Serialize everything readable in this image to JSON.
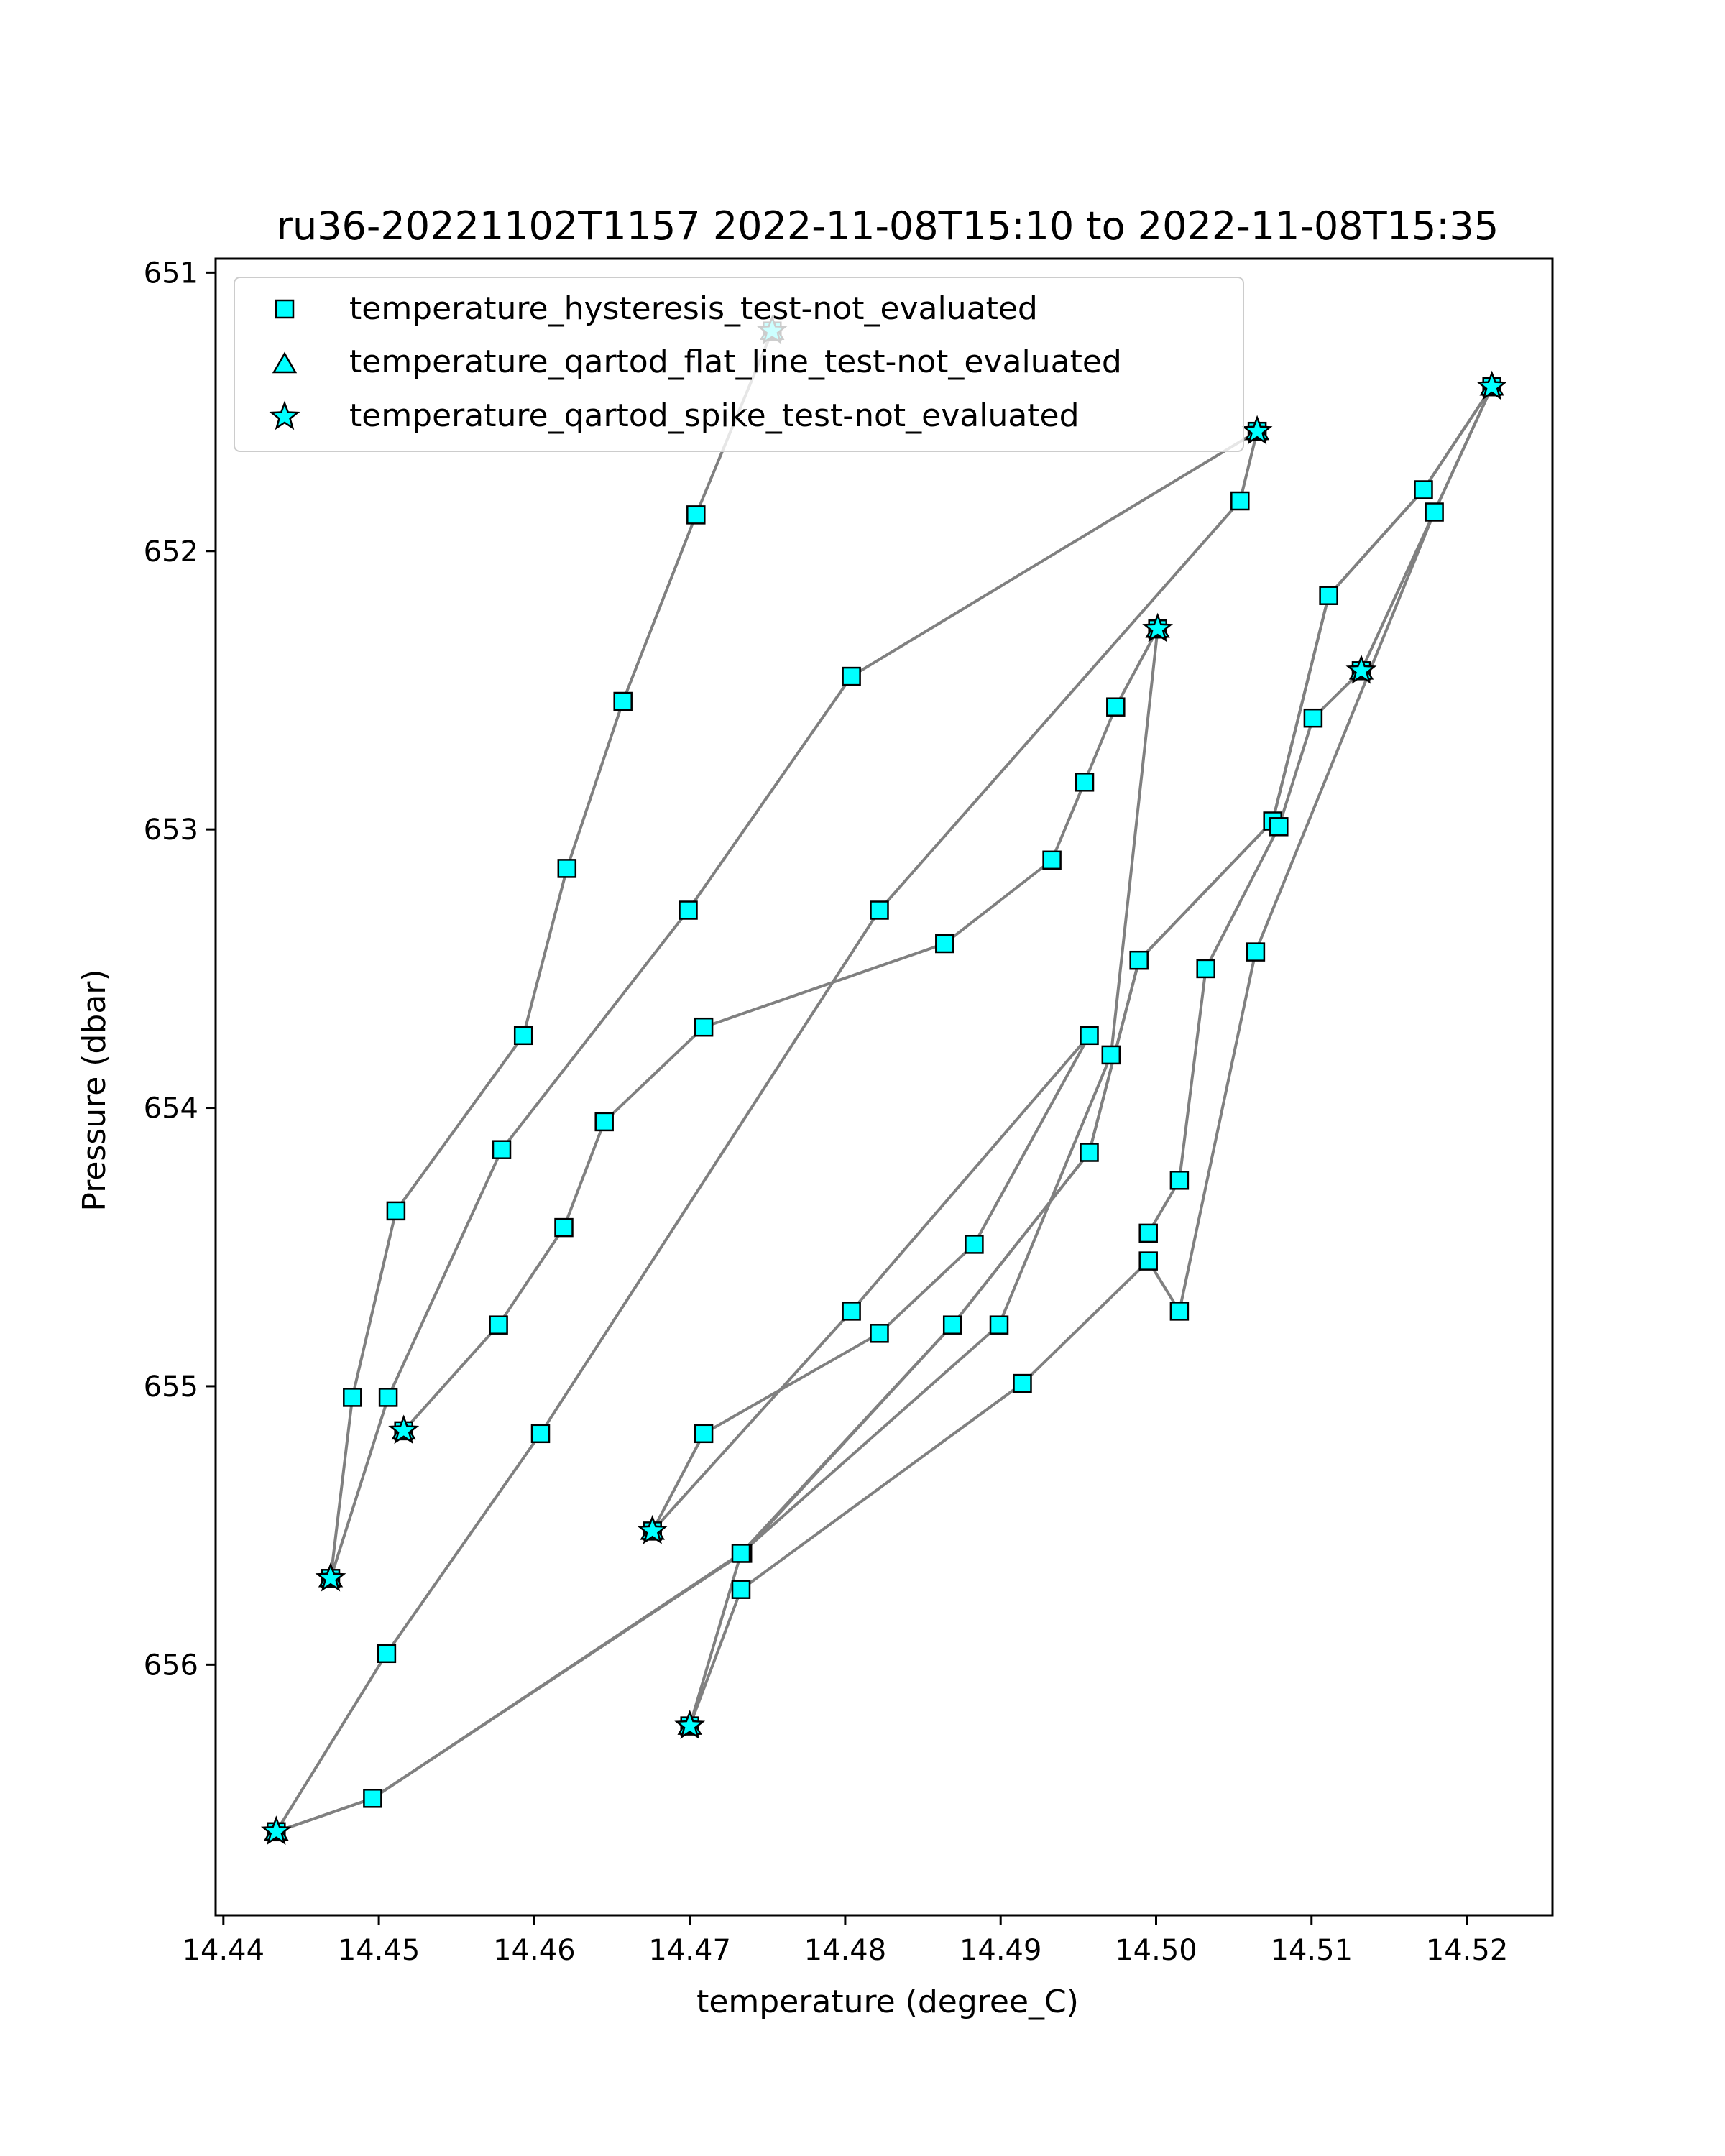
{
  "chart_data": {
    "type": "line",
    "title": "ru36-20221102T1157 2022-11-08T15:10 to 2022-11-08T15:35",
    "xlabel": "temperature (degree_C)",
    "ylabel": "Pressure (dbar)",
    "xlim": [
      14.4395,
      14.5255
    ],
    "ylim": [
      656.9,
      650.95
    ],
    "y_inverted": true,
    "xticks": [
      "14.44",
      "14.45",
      "14.46",
      "14.47",
      "14.48",
      "14.49",
      "14.50",
      "14.51",
      "14.52"
    ],
    "yticks": [
      "651",
      "652",
      "653",
      "654",
      "655",
      "656"
    ],
    "grid": false,
    "legend_position": "upper-left",
    "colors": {
      "line": "#808080",
      "marker_fill": "#00ffff",
      "marker_edge": "#000000"
    },
    "legend": [
      {
        "label": "temperature_hysteresis_test-not_evaluated",
        "marker": "square"
      },
      {
        "label": "temperature_qartod_flat_line_test-not_evaluated",
        "marker": "triangle"
      },
      {
        "label": "temperature_qartod_spike_test-not_evaluated",
        "marker": "star"
      }
    ],
    "series": [
      {
        "label_marker": "square",
        "spike_points": [
          [
            14.4753,
            651.21
          ],
          [
            14.5065,
            651.57
          ],
          [
            14.5216,
            651.41
          ],
          [
            14.5001,
            652.28
          ],
          [
            14.5132,
            652.43
          ],
          [
            14.4516,
            655.16
          ],
          [
            14.4469,
            655.69
          ],
          [
            14.4676,
            655.52
          ],
          [
            14.47,
            656.22
          ],
          [
            14.4434,
            656.6
          ]
        ],
        "points": [
          [
            14.4753,
            651.21
          ],
          [
            14.4704,
            651.87
          ],
          [
            14.4657,
            652.54
          ],
          [
            14.4621,
            653.14
          ],
          [
            14.4593,
            653.74
          ],
          [
            14.4511,
            654.37
          ],
          [
            14.4483,
            655.04
          ],
          [
            14.4469,
            655.69
          ],
          [
            14.4506,
            655.04
          ],
          [
            14.4579,
            654.15
          ],
          [
            14.4699,
            653.29
          ],
          [
            14.4804,
            652.45
          ],
          [
            14.5065,
            651.57
          ],
          [
            14.5054,
            651.82
          ],
          [
            14.4822,
            653.29
          ],
          [
            14.4604,
            655.17
          ],
          [
            14.4505,
            655.96
          ],
          [
            14.4434,
            656.6
          ],
          [
            14.4496,
            656.48
          ],
          [
            14.4734,
            655.6
          ],
          [
            14.4869,
            654.78
          ],
          [
            14.4957,
            654.16
          ],
          [
            14.4989,
            653.47
          ],
          [
            14.5075,
            652.97
          ],
          [
            14.5111,
            652.16
          ],
          [
            14.5172,
            651.78
          ],
          [
            14.5216,
            651.41
          ],
          [
            14.5179,
            651.86
          ],
          [
            14.5064,
            653.44
          ],
          [
            14.5015,
            654.73
          ],
          [
            14.4995,
            654.55
          ],
          [
            14.4914,
            654.99
          ],
          [
            14.4733,
            655.73
          ],
          [
            14.47,
            656.22
          ],
          [
            14.4733,
            655.6
          ],
          [
            14.4899,
            654.78
          ],
          [
            14.4971,
            653.81
          ],
          [
            14.5001,
            652.28
          ],
          [
            14.4974,
            652.56
          ],
          [
            14.4954,
            652.83
          ],
          [
            14.4933,
            653.11
          ],
          [
            14.4864,
            653.41
          ],
          [
            14.4709,
            653.71
          ],
          [
            14.4645,
            654.05
          ],
          [
            14.4619,
            654.43
          ],
          [
            14.4577,
            654.78
          ],
          [
            14.4516,
            655.16
          ],
          [
            14.4516,
            655.16
          ]
        ],
        "extra_chain": [
          [
            14.4676,
            655.52
          ],
          [
            14.4709,
            655.17
          ],
          [
            14.4822,
            654.81
          ],
          [
            14.4883,
            654.49
          ],
          [
            14.4957,
            653.74
          ],
          [
            14.4804,
            654.73
          ],
          [
            14.4676,
            655.52
          ]
        ],
        "extra_chain2": [
          [
            14.4434,
            656.6
          ],
          [
            14.4496,
            656.48
          ],
          [
            14.4733,
            655.6
          ],
          [
            14.4869,
            654.78
          ],
          [
            14.4957,
            654.16
          ],
          [
            14.4989,
            653.47
          ],
          [
            14.5075,
            652.97
          ],
          [
            14.5111,
            652.16
          ],
          [
            14.5172,
            651.78
          ],
          [
            14.5216,
            651.41
          ],
          [
            14.5179,
            651.86
          ],
          [
            14.5132,
            652.43
          ],
          [
            14.5101,
            652.6
          ],
          [
            14.5079,
            652.99
          ],
          [
            14.5032,
            653.5
          ],
          [
            14.5015,
            654.26
          ],
          [
            14.4995,
            654.45
          ]
        ]
      }
    ]
  }
}
